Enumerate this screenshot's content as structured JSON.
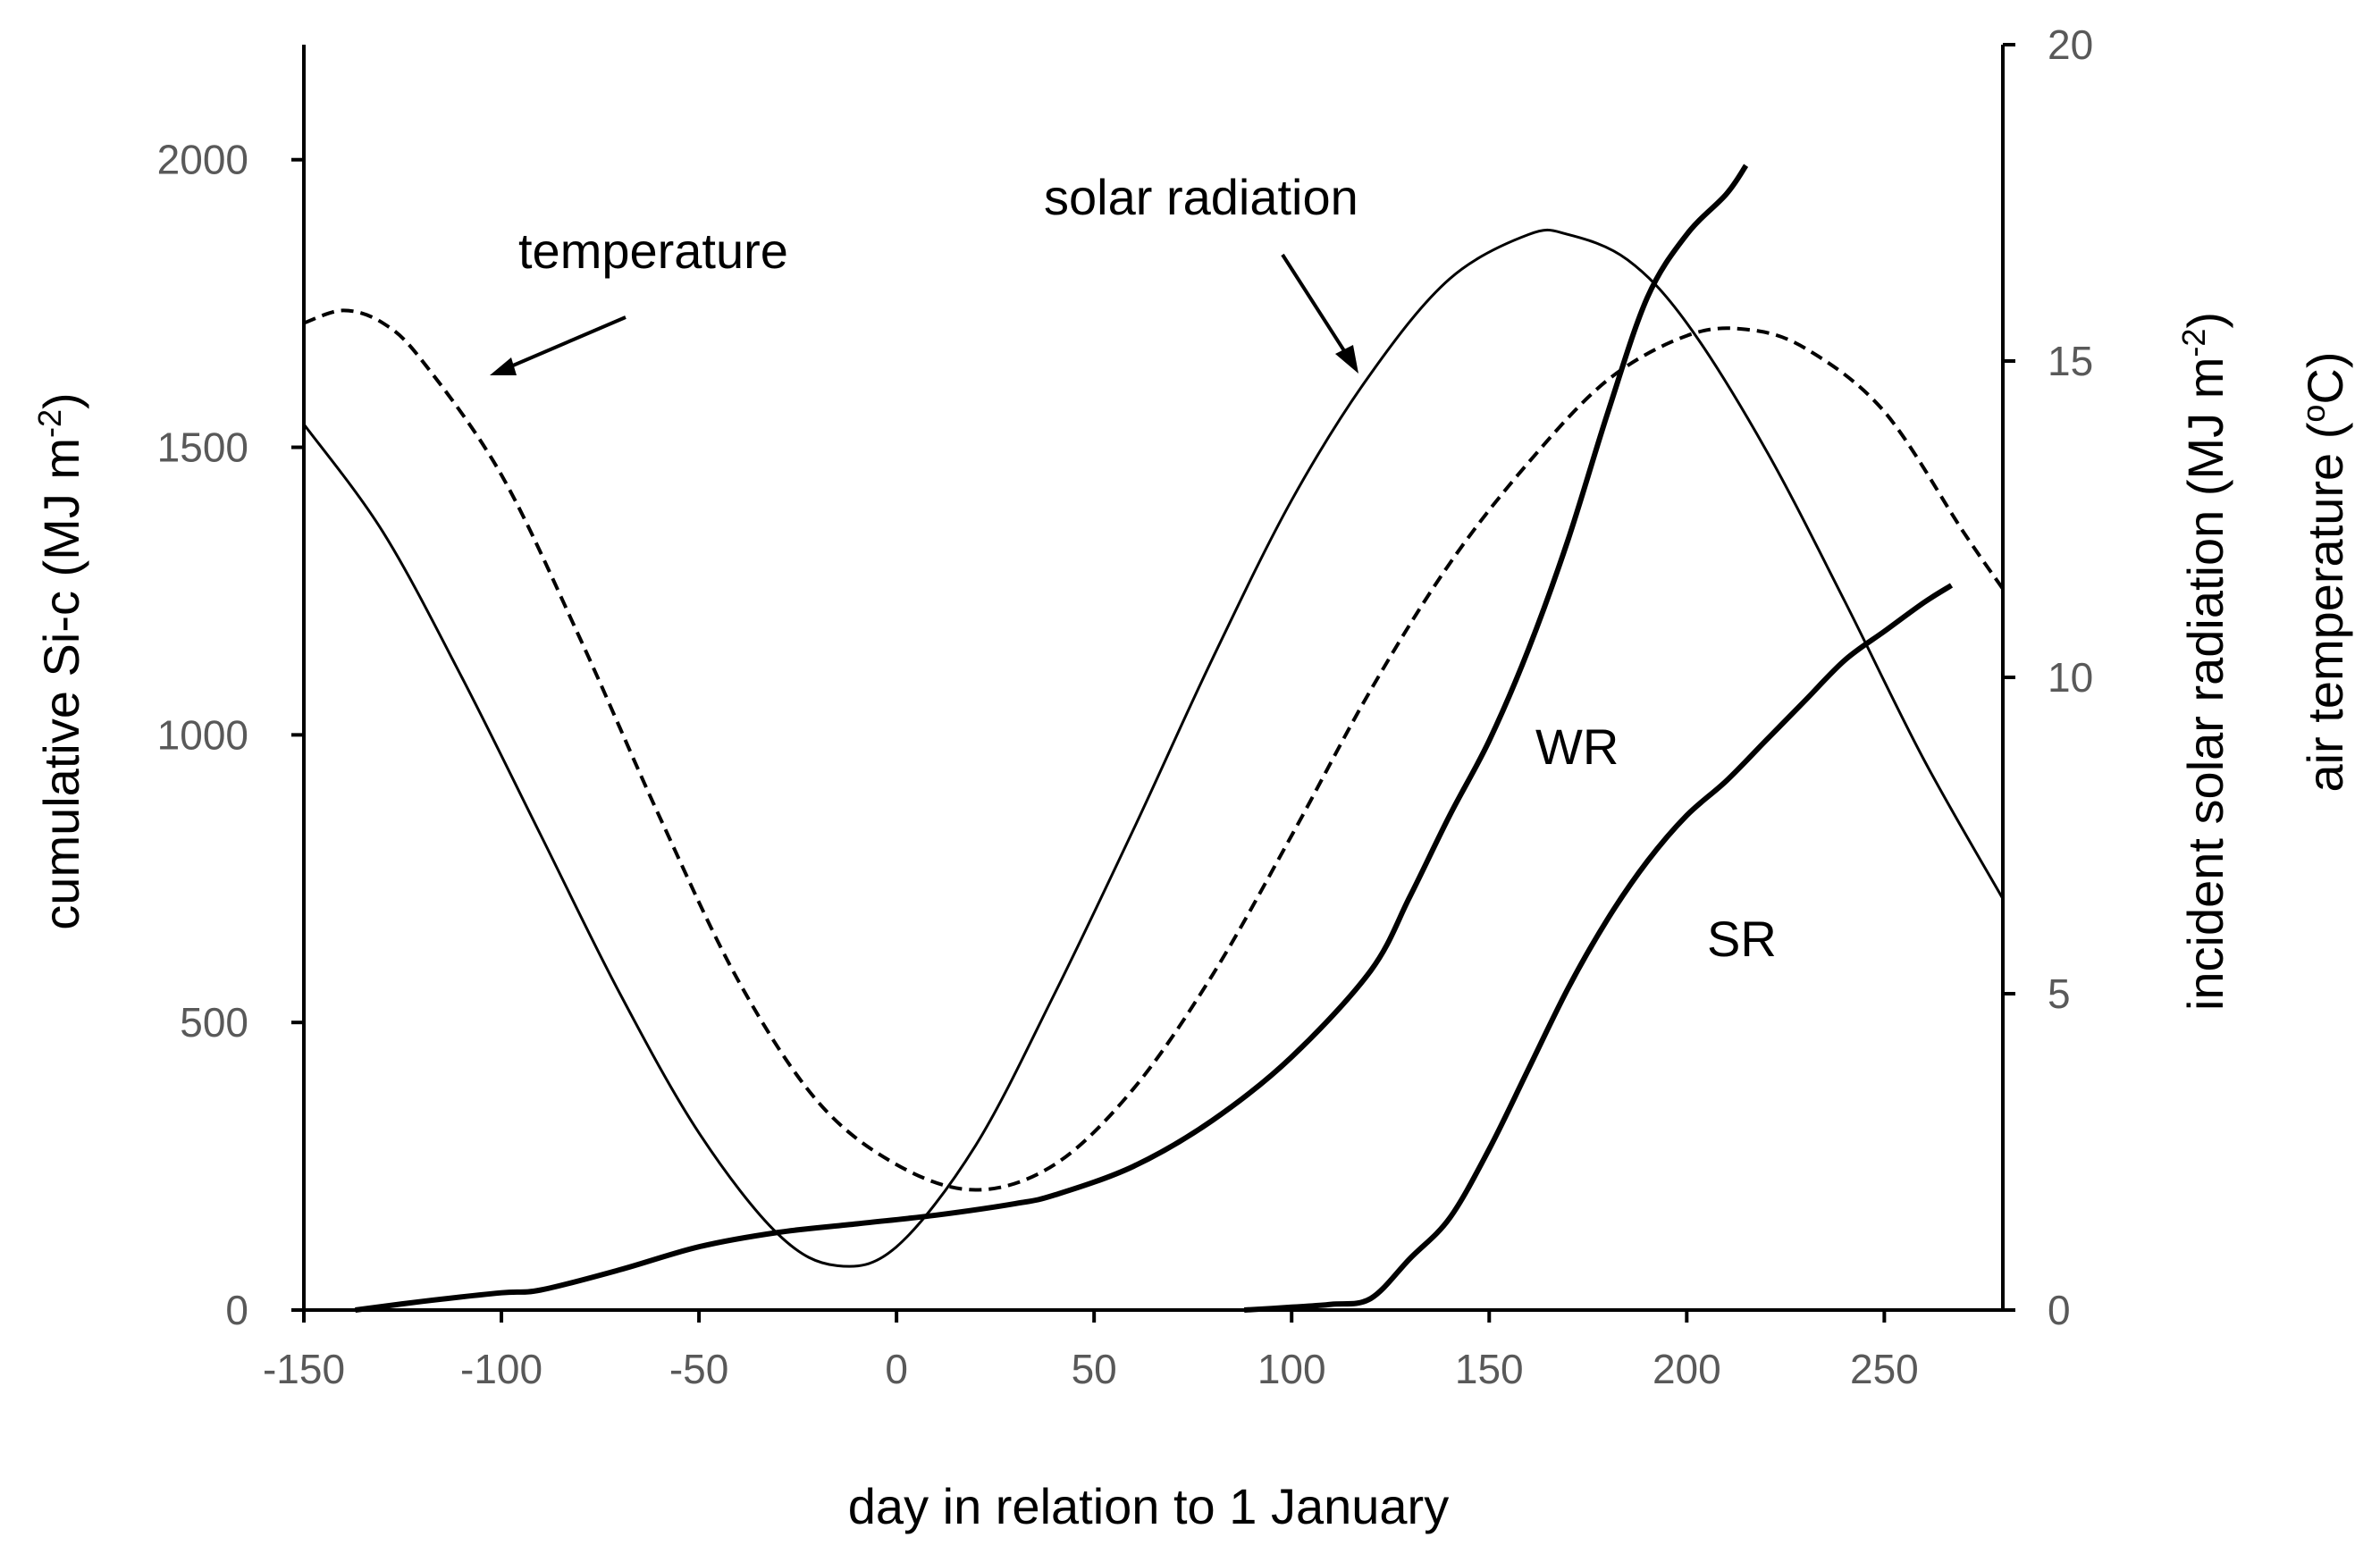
{
  "chart_data": {
    "type": "line",
    "title": "",
    "xlabel": "day in relation to 1 January",
    "ylabel_left": "cumulative Si-c (MJ m-2)",
    "ylabel_left_base": "cumulative Si-c (MJ m",
    "ylabel_left_sup": "-2",
    "ylabel_left_close": ")",
    "ylabel_right": "incident solar radiation (MJ m-2)",
    "ylabel_right_base": "incident solar radiation (MJ m",
    "ylabel_right_sup": "-2",
    "ylabel_right_close": ")",
    "ylabel_right2": "air temperature (oC)",
    "ylabel_right2_pre": "air temperature (",
    "ylabel_right2_sup": "o",
    "ylabel_right2_post": "C)",
    "xlim": [
      -150,
      280
    ],
    "ylim_left": [
      0,
      2200
    ],
    "ylim_right": [
      0,
      20
    ],
    "x_ticks": [
      -150,
      -100,
      -50,
      0,
      50,
      100,
      150,
      200,
      250
    ],
    "y_left_ticks": [
      0,
      500,
      1000,
      1500,
      2000
    ],
    "y_right_ticks": [
      0,
      5,
      10,
      15,
      20
    ],
    "grid": false,
    "annotations": {
      "temperature": "temperature",
      "solar_radiation": "solar radiation",
      "wr": "WR",
      "sr": "SR"
    },
    "series": [
      {
        "name": "solar radiation",
        "axis": "right",
        "style": "solid-thin",
        "x": [
          -150,
          -130,
          -110,
          -90,
          -70,
          -50,
          -30,
          -15,
          0,
          20,
          40,
          60,
          80,
          100,
          120,
          140,
          160,
          170,
          185,
          200,
          220,
          240,
          260,
          280
        ],
        "y": [
          14.0,
          12.3,
          10.0,
          7.5,
          5.0,
          2.8,
          1.2,
          0.7,
          1.0,
          2.6,
          5.0,
          7.6,
          10.3,
          12.8,
          14.8,
          16.3,
          17.0,
          17.0,
          16.6,
          15.6,
          13.6,
          11.2,
          8.7,
          6.5
        ]
      },
      {
        "name": "temperature",
        "axis": "right",
        "style": "dashed",
        "x": [
          -150,
          -140,
          -130,
          -120,
          -100,
          -80,
          -60,
          -40,
          -20,
          0,
          20,
          40,
          60,
          80,
          100,
          120,
          140,
          160,
          180,
          200,
          215,
          230,
          250,
          270,
          280
        ],
        "y": [
          15.6,
          15.8,
          15.6,
          15.0,
          13.2,
          10.6,
          7.8,
          5.2,
          3.3,
          2.3,
          1.9,
          2.3,
          3.5,
          5.3,
          7.5,
          9.8,
          11.8,
          13.4,
          14.7,
          15.4,
          15.5,
          15.2,
          14.2,
          12.3,
          11.4
        ]
      },
      {
        "name": "WR",
        "axis": "left",
        "style": "solid-thick",
        "x": [
          -137,
          -120,
          -100,
          -90,
          -70,
          -50,
          -30,
          -10,
          10,
          30,
          40,
          60,
          80,
          100,
          120,
          130,
          140,
          150,
          160,
          170,
          180,
          190,
          200,
          210,
          215
        ],
        "y": [
          0,
          15,
          30,
          35,
          70,
          110,
          135,
          150,
          165,
          185,
          200,
          250,
          330,
          440,
          590,
          720,
          860,
          990,
          1150,
          1340,
          1560,
          1760,
          1870,
          1940,
          1990
        ]
      },
      {
        "name": "SR",
        "axis": "left",
        "style": "solid-thick",
        "x": [
          88,
          100,
          110,
          120,
          130,
          140,
          150,
          160,
          170,
          180,
          190,
          200,
          210,
          220,
          230,
          240,
          250,
          260,
          267
        ],
        "y": [
          0,
          5,
          10,
          20,
          90,
          160,
          280,
          420,
          560,
          680,
          780,
          860,
          920,
          990,
          1060,
          1130,
          1180,
          1230,
          1260
        ]
      }
    ]
  }
}
